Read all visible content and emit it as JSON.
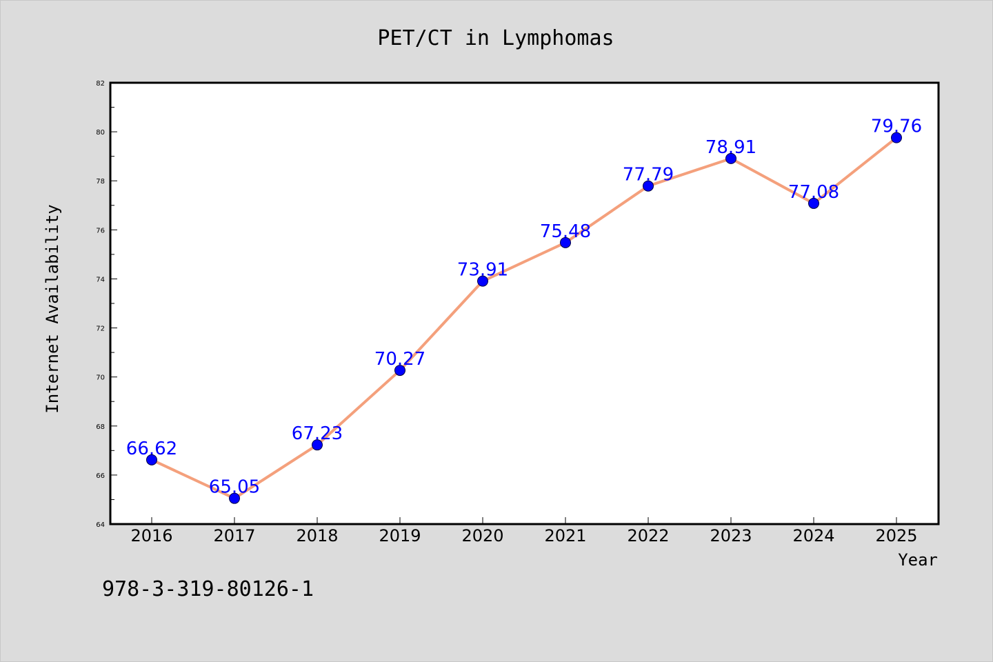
{
  "chart_data": {
    "type": "line",
    "title": "PET/CT in Lymphomas",
    "xlabel": "Year",
    "ylabel": "Internet Availability",
    "categories": [
      "2016",
      "2017",
      "2018",
      "2019",
      "2020",
      "2021",
      "2022",
      "2023",
      "2024",
      "2025"
    ],
    "series": [
      {
        "values": [
          66.62,
          65.05,
          67.23,
          70.27,
          73.91,
          75.48,
          77.79,
          78.91,
          77.08,
          79.76
        ],
        "line_color": "#f4a07c",
        "marker_color": "#0000ff"
      }
    ],
    "ylim": [
      64,
      82
    ],
    "yticks": [
      64,
      66,
      68,
      70,
      72,
      74,
      76,
      78,
      80,
      82
    ],
    "grid": false,
    "data_labels": true,
    "label_color": "#0000ff"
  },
  "footer": {
    "isbn": "978-3-319-80126-1"
  }
}
